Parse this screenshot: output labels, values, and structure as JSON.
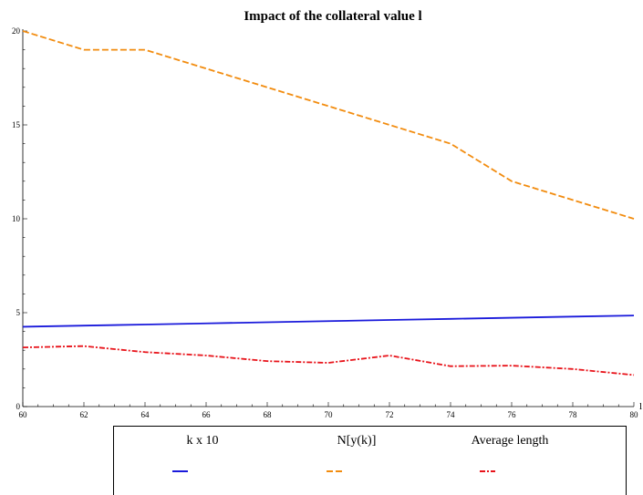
{
  "chart_data": {
    "type": "line",
    "title": "Impact of the collateral value l",
    "xlabel": "l",
    "ylabel": "",
    "xlim": [
      60,
      80
    ],
    "ylim": [
      0,
      20
    ],
    "x_ticks": [
      "60",
      "62",
      "64",
      "66",
      "68",
      "70",
      "72",
      "74",
      "76",
      "78",
      "80"
    ],
    "y_ticks": [
      "0",
      "5",
      "10",
      "15",
      "20"
    ],
    "x": [
      60,
      62,
      64,
      66,
      68,
      70,
      72,
      74,
      76,
      78,
      80
    ],
    "grid": false,
    "legend_position": "bottom",
    "series": [
      {
        "name": "k x 10",
        "values": [
          4.25,
          4.31,
          4.37,
          4.43,
          4.49,
          4.55,
          4.61,
          4.67,
          4.73,
          4.79,
          4.85
        ],
        "color": "#1a1adb",
        "style": "solid"
      },
      {
        "name": "N[y(k)]",
        "values": [
          20,
          19,
          19,
          18,
          17,
          16,
          15,
          14,
          12,
          11,
          10
        ],
        "color": "#f28c0f",
        "style": "dashed"
      },
      {
        "name": "Average length",
        "values": [
          3.15,
          3.22,
          2.9,
          2.72,
          2.42,
          2.33,
          2.72,
          2.15,
          2.18,
          2.0,
          1.68
        ],
        "color": "#e8131a",
        "style": "dashdot"
      }
    ]
  }
}
